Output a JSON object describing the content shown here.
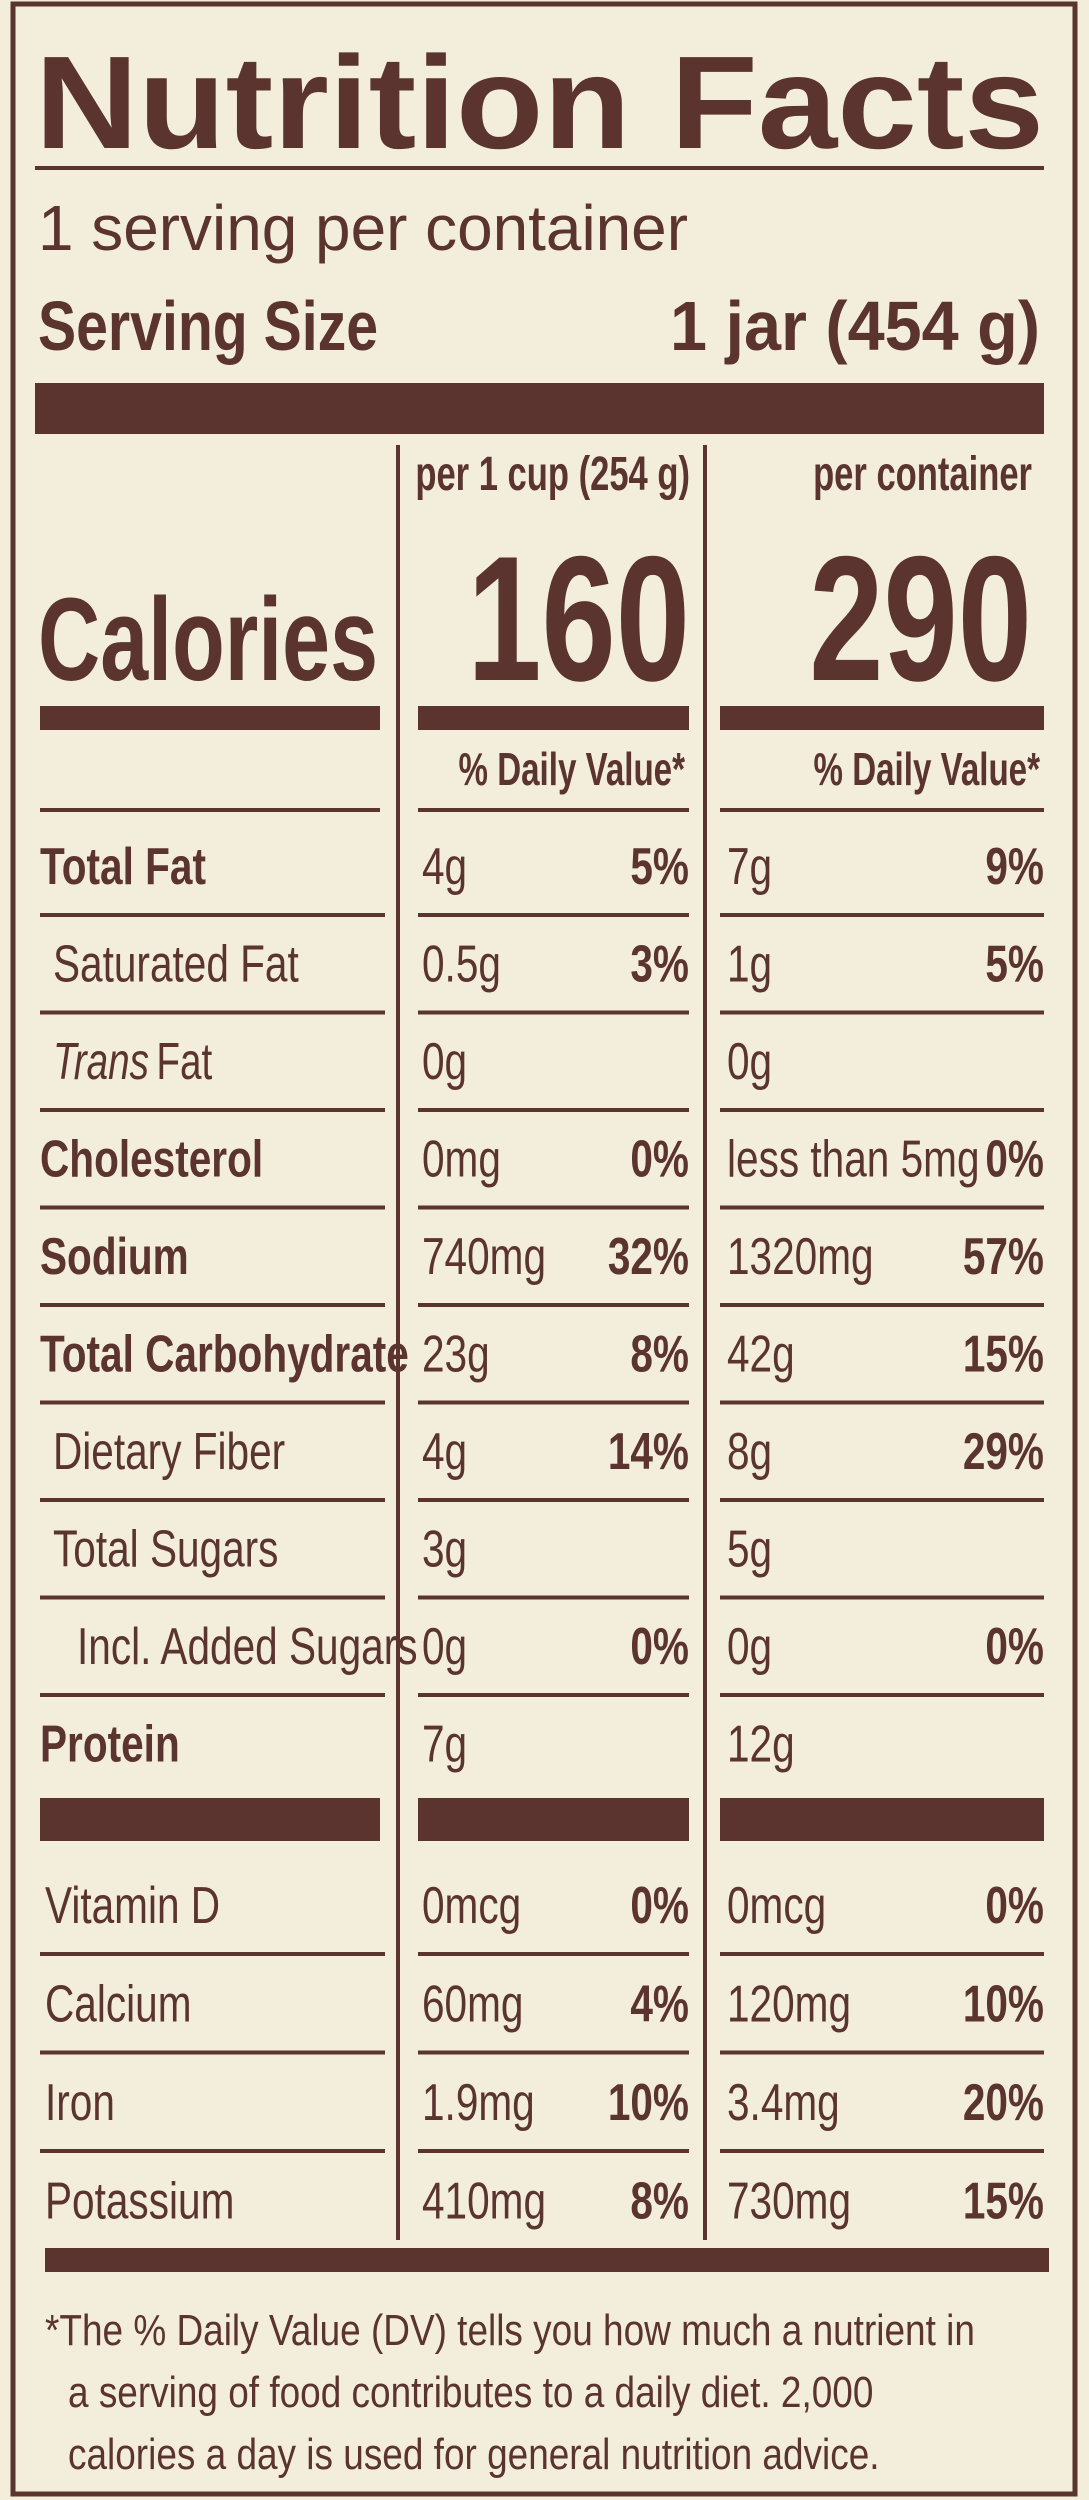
{
  "title": "Nutrition Facts",
  "servings_per_container": "1 serving per container",
  "serving_size": {
    "label": "Serving Size",
    "value": "1 jar (454 g)"
  },
  "calories_label": "Calories",
  "columns": [
    {
      "basis": "per 1 cup (254 g)",
      "calories": "160",
      "daily_value_header": "% Daily Value*"
    },
    {
      "basis": "per container",
      "calories": "290",
      "daily_value_header": "% Daily Value*"
    }
  ],
  "nutrients": [
    {
      "name": "Total Fat",
      "style": "bold",
      "values": [
        {
          "amount": "4g",
          "dv": "5%"
        },
        {
          "amount": "7g",
          "dv": "9%"
        }
      ]
    },
    {
      "name": "Saturated Fat",
      "style": "indent",
      "values": [
        {
          "amount": "0.5g",
          "dv": "3%"
        },
        {
          "amount": "1g",
          "dv": "5%"
        }
      ]
    },
    {
      "name_italic": "Trans",
      "name": "Fat",
      "style": "indent",
      "values": [
        {
          "amount": "0g"
        },
        {
          "amount": "0g"
        }
      ]
    },
    {
      "name": "Cholesterol",
      "style": "bold",
      "values": [
        {
          "amount": "0mg",
          "dv": "0%"
        },
        {
          "amount": "less than 5mg",
          "dv": "0%"
        }
      ]
    },
    {
      "name": "Sodium",
      "style": "bold",
      "values": [
        {
          "amount": "740mg",
          "dv": "32%"
        },
        {
          "amount": "1320mg",
          "dv": "57%"
        }
      ]
    },
    {
      "name": "Total Carbohydrate",
      "style": "bold",
      "values": [
        {
          "amount": "23g",
          "dv": "8%"
        },
        {
          "amount": "42g",
          "dv": "15%"
        }
      ]
    },
    {
      "name": "Dietary Fiber",
      "style": "indent",
      "values": [
        {
          "amount": "4g",
          "dv": "14%"
        },
        {
          "amount": "8g",
          "dv": "29%"
        }
      ]
    },
    {
      "name": "Total Sugars",
      "style": "indent",
      "values": [
        {
          "amount": "3g"
        },
        {
          "amount": "5g"
        }
      ]
    },
    {
      "name": "Incl. Added Sugars",
      "style": "indent2",
      "values": [
        {
          "amount": "0g",
          "dv": "0%"
        },
        {
          "amount": "0g",
          "dv": "0%"
        }
      ]
    },
    {
      "name": "Protein",
      "style": "bold",
      "values": [
        {
          "amount": "7g"
        },
        {
          "amount": "12g"
        }
      ]
    }
  ],
  "vitamins": [
    {
      "name": "Vitamin D",
      "values": [
        {
          "amount": "0mcg",
          "dv": "0%"
        },
        {
          "amount": "0mcg",
          "dv": "0%"
        }
      ]
    },
    {
      "name": "Calcium",
      "values": [
        {
          "amount": "60mg",
          "dv": "4%"
        },
        {
          "amount": "120mg",
          "dv": "10%"
        }
      ]
    },
    {
      "name": "Iron",
      "values": [
        {
          "amount": "1.9mg",
          "dv": "10%"
        },
        {
          "amount": "3.4mg",
          "dv": "20%"
        }
      ]
    },
    {
      "name": "Potassium",
      "values": [
        {
          "amount": "410mg",
          "dv": "8%"
        },
        {
          "amount": "730mg",
          "dv": "15%"
        }
      ]
    }
  ],
  "footnote": [
    "*The % Daily Value (DV) tells you how much a nutrient in",
    "a serving of food contributes to a daily diet. 2,000",
    "calories a day is used for general nutrition advice."
  ]
}
